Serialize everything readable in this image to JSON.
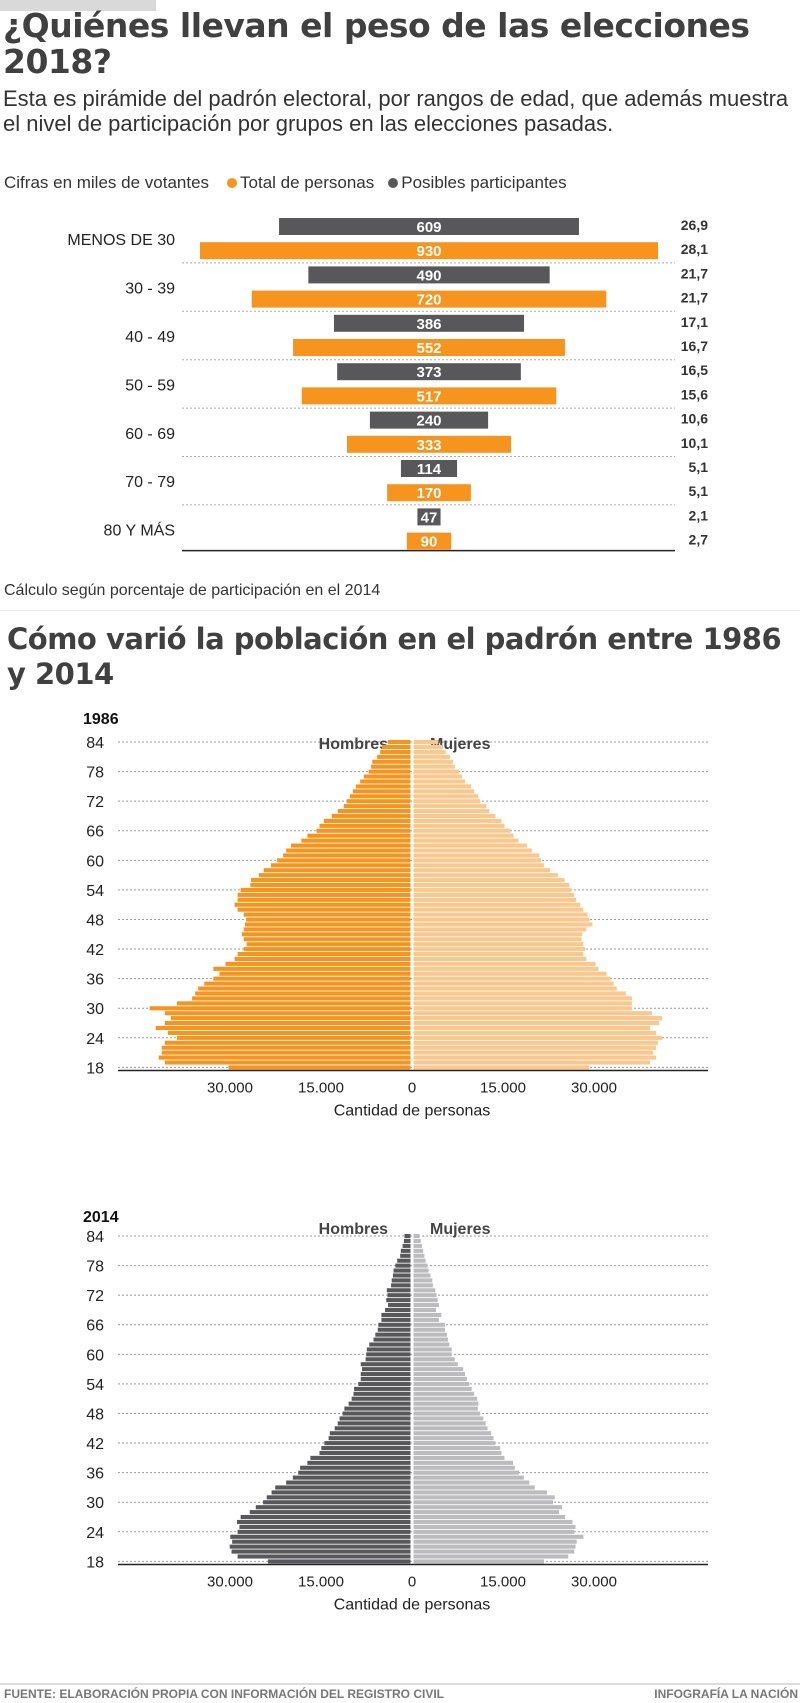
{
  "header": {
    "title": "¿Quiénes llevan el peso de las elecciones 2018?",
    "subtitle": "Esta es pirámide del padrón electoral, por rangos de edad, que además muestra el nivel de participación por grupos en las elecciones pasadas."
  },
  "legend": {
    "units": "Cifras en miles de votantes",
    "items": [
      {
        "label": "Total de personas",
        "color": "#f7941d"
      },
      {
        "label": "Posibles participantes",
        "color": "#58585a"
      }
    ]
  },
  "note": "Cálculo según porcentaje de participación en el 2014",
  "section2": {
    "title": "Cómo varió la población en el padrón entre 1986 y 2014"
  },
  "footer": {
    "source": "FUENTE: ELABORACIÓN PROPIA CON INFORMACIÓN DEL REGISTRO CIVIL",
    "credit": "INFOGRAFÍA LA NACIÓN"
  },
  "chart_data": [
    {
      "type": "bar",
      "title": "Pirámide del padrón electoral por rangos de edad",
      "orientation": "horizontal-centered",
      "units": "miles de votantes",
      "groups": [
        {
          "label": "80 Y MÁS",
          "total": 90,
          "participants": 47,
          "total_pct": 2.7,
          "participants_pct": 2.1
        },
        {
          "label": "70 - 79",
          "total": 170,
          "participants": 114,
          "total_pct": 5.1,
          "participants_pct": 5.1
        },
        {
          "label": "60 - 69",
          "total": 333,
          "participants": 240,
          "total_pct": 10.1,
          "participants_pct": 10.6
        },
        {
          "label": "50 - 59",
          "total": 517,
          "participants": 373,
          "total_pct": 15.6,
          "participants_pct": 16.5
        },
        {
          "label": "40 - 49",
          "total": 552,
          "participants": 386,
          "total_pct": 16.7,
          "participants_pct": 17.1
        },
        {
          "label": "30 - 39",
          "total": 720,
          "participants": 490,
          "total_pct": 21.7,
          "participants_pct": 21.7
        },
        {
          "label": "MENOS DE 30",
          "total": 930,
          "participants": 609,
          "total_pct": 28.1,
          "participants_pct": 26.9
        }
      ],
      "series": [
        {
          "name": "Total de personas",
          "color": "#f7941d"
        },
        {
          "name": "Posibles participantes",
          "color": "#58585a"
        }
      ]
    },
    {
      "type": "bar",
      "title": "1986",
      "orientation": "population-pyramid",
      "left_label": "Hombres",
      "right_label": "Mujeres",
      "xlabel": "Cantidad de personas",
      "xticks": [
        "30.000",
        "15.000",
        "0",
        "15.000",
        "30.000"
      ],
      "xlim": [
        -45000,
        45000
      ],
      "yticks": [
        84,
        78,
        72,
        66,
        60,
        54,
        48,
        42,
        36,
        30,
        24,
        18
      ],
      "colors": {
        "men": "#f7941d",
        "women": "#fbc78d"
      },
      "ages_from": 18,
      "ages_to": 84,
      "men": [
        30000,
        40500,
        41500,
        41000,
        41000,
        40500,
        38500,
        40000,
        42000,
        40500,
        39500,
        40500,
        43000,
        38500,
        36000,
        35500,
        35000,
        34000,
        32500,
        31500,
        32500,
        30500,
        29000,
        28500,
        27500,
        27000,
        27500,
        27800,
        27500,
        27300,
        27100,
        27500,
        28500,
        29000,
        28500,
        28500,
        28000,
        26400,
        26300,
        25000,
        24200,
        23000,
        22000,
        21000,
        20500,
        19700,
        18000,
        17000,
        15500,
        15000,
        14300,
        13000,
        12000,
        11000,
        10500,
        10000,
        9500,
        9000,
        8300,
        7700,
        6900,
        6500,
        6300,
        5500,
        5000,
        4700,
        3700
      ],
      "women": [
        29000,
        39000,
        40000,
        39500,
        40000,
        40300,
        41000,
        40000,
        39000,
        40500,
        41000,
        39300,
        36000,
        36000,
        36000,
        35000,
        33500,
        33000,
        32500,
        31800,
        30500,
        30000,
        28500,
        28000,
        28300,
        28000,
        27700,
        27800,
        28500,
        29500,
        29000,
        28700,
        28000,
        27500,
        26800,
        26500,
        26000,
        25700,
        24900,
        23800,
        22500,
        21500,
        21000,
        20700,
        19500,
        18700,
        17300,
        16500,
        16000,
        15000,
        14500,
        13500,
        12500,
        12000,
        11000,
        10700,
        10000,
        9500,
        8500,
        8000,
        7500,
        6800,
        6500,
        6000,
        5300,
        4700,
        4100
      ]
    },
    {
      "type": "bar",
      "title": "2014",
      "orientation": "population-pyramid",
      "left_label": "Hombres",
      "right_label": "Mujeres",
      "xlabel": "Cantidad de personas",
      "xticks": [
        "30.000",
        "15.000",
        "0",
        "15.000",
        "30.000"
      ],
      "xlim": [
        -45000,
        45000
      ],
      "yticks": [
        84,
        78,
        72,
        66,
        60,
        54,
        48,
        42,
        36,
        30,
        24,
        18
      ],
      "colors": {
        "men": "#58585a",
        "women": "#bcbcbe"
      },
      "ages_from": 18,
      "ages_to": 84,
      "men": [
        23500,
        28500,
        29500,
        29800,
        29400,
        29700,
        28500,
        28200,
        28600,
        28000,
        26500,
        25500,
        24300,
        23700,
        22900,
        22300,
        20500,
        19400,
        18500,
        18200,
        17000,
        16500,
        15000,
        14700,
        14200,
        13500,
        13300,
        12500,
        12000,
        11700,
        11200,
        10900,
        10200,
        9700,
        9400,
        9300,
        8600,
        8200,
        8200,
        8000,
        8200,
        7400,
        7300,
        7200,
        6800,
        6100,
        5800,
        5400,
        5300,
        4800,
        4800,
        4200,
        3700,
        4000,
        3800,
        3900,
        3200,
        3100,
        2900,
        2800,
        2500,
        2200,
        1700,
        1600,
        1300,
        1100,
        1000
      ],
      "women": [
        21500,
        25500,
        26500,
        26700,
        26900,
        28000,
        26500,
        26700,
        26200,
        25000,
        24000,
        24500,
        23000,
        23300,
        22000,
        20000,
        19100,
        18200,
        17400,
        16700,
        16400,
        15000,
        14500,
        14300,
        13500,
        13200,
        12800,
        12200,
        11900,
        11500,
        11000,
        10600,
        10700,
        10500,
        10000,
        9600,
        9200,
        8800,
        8500,
        8200,
        7300,
        6800,
        6300,
        6300,
        5900,
        5700,
        5500,
        5200,
        5200,
        4200,
        4600,
        3700,
        4200,
        4000,
        3800,
        3600,
        3200,
        3100,
        2800,
        2500,
        2300,
        2000,
        1800,
        1600,
        1400,
        1200,
        1000
      ]
    }
  ]
}
